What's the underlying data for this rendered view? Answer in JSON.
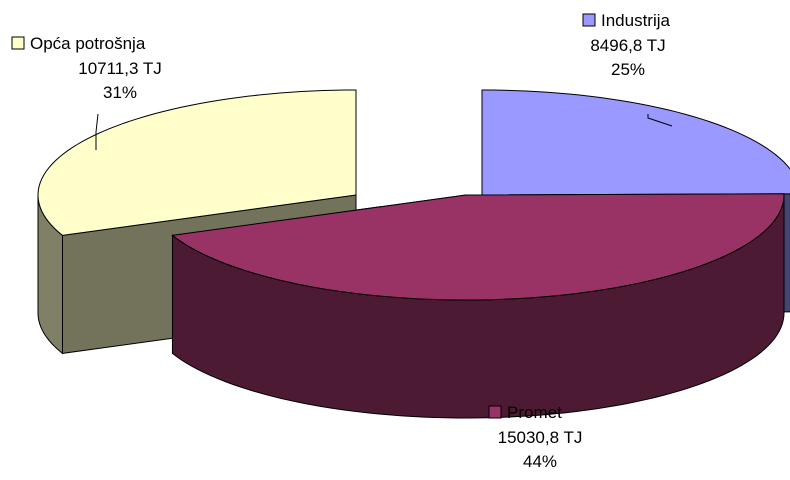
{
  "chart_data": {
    "type": "pie",
    "style": "3d-exploded",
    "slices": [
      {
        "name": "Industrija",
        "value_label": "8496,8 TJ",
        "value": 8496.8,
        "percent": "25%",
        "color": "#9999ff"
      },
      {
        "name": "Promet",
        "value_label": "15030,8 TJ",
        "value": 15030.8,
        "percent": "44%",
        "color": "#993366"
      },
      {
        "name": "Opća potrošnja",
        "value_label": "10711,3 TJ",
        "value": 10711.3,
        "percent": "31%",
        "color": "#ffffcc"
      }
    ]
  }
}
